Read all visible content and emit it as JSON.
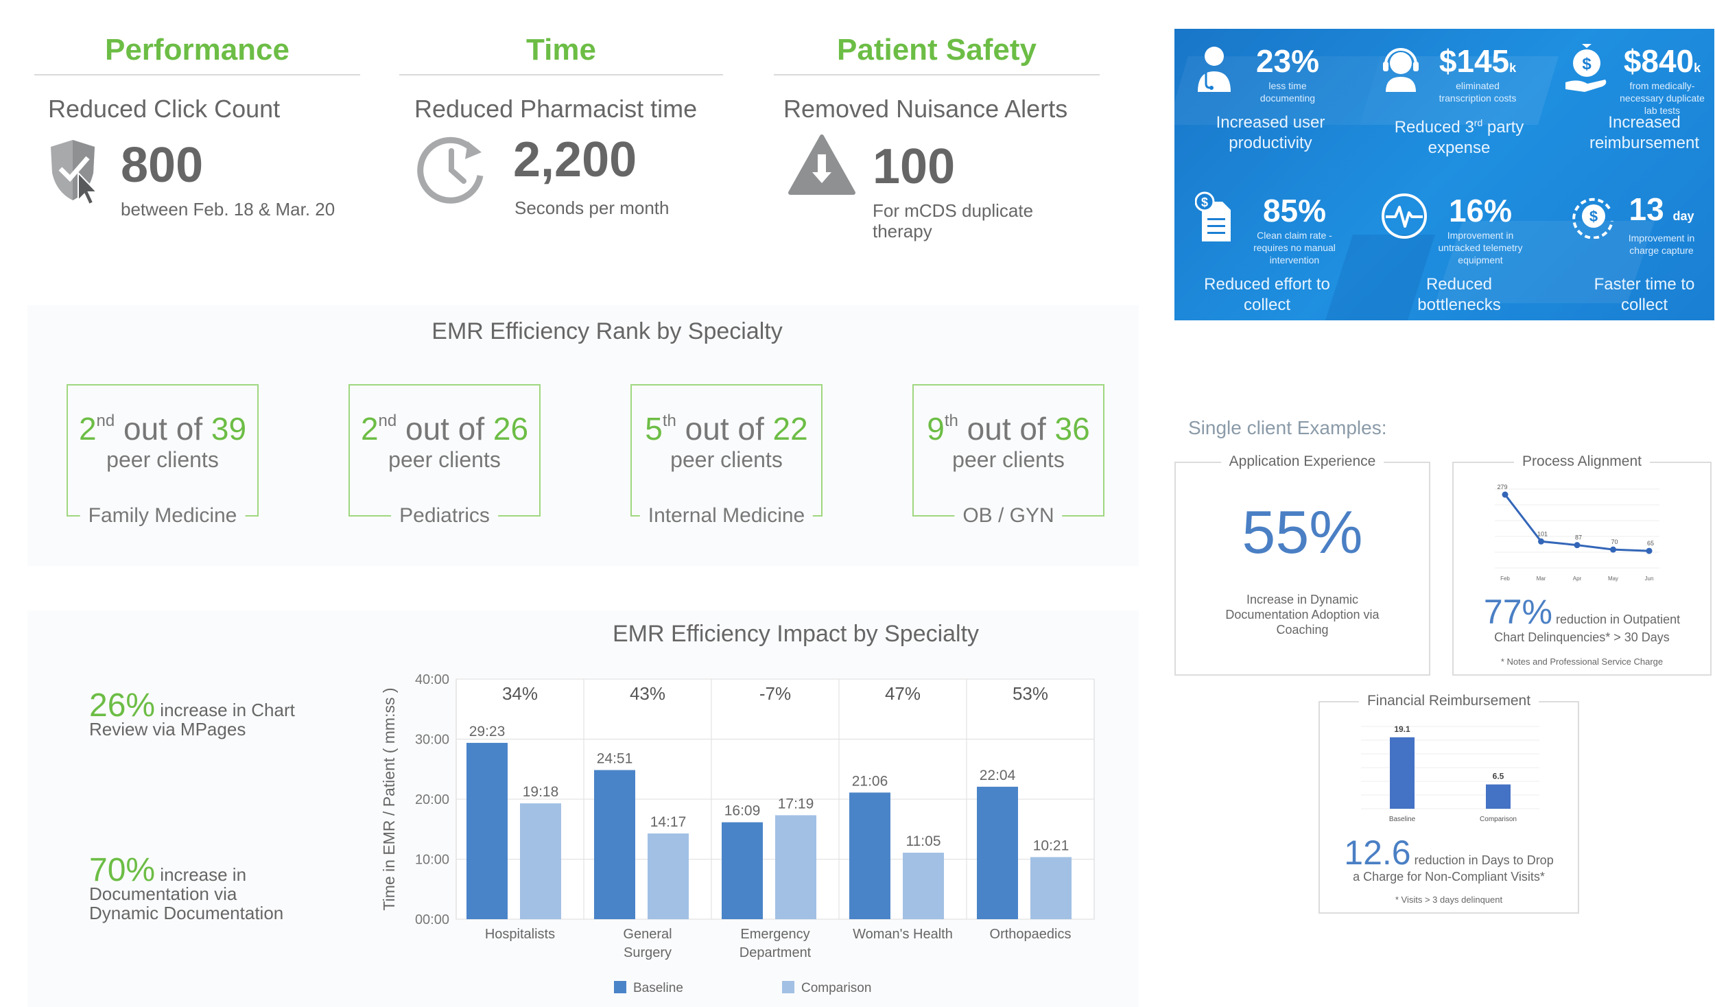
{
  "performance": {
    "header": "Performance",
    "subtitle": "Reduced Click Count",
    "value": "800",
    "note": "between Feb. 18 & Mar. 20",
    "icon": "shield-cursor-icon"
  },
  "time": {
    "header": "Time",
    "subtitle": "Reduced Pharmacist time",
    "value": "2,200",
    "note": "Seconds per month",
    "icon": "clock-refresh-icon"
  },
  "patient_safety": {
    "header": "Patient Safety",
    "subtitle": "Removed Nuisance Alerts",
    "value": "100",
    "note_line1": "For mCDS duplicate",
    "note_line2": "therapy",
    "icon": "warning-icon"
  },
  "kpis": [
    {
      "value": "23%",
      "unit": "",
      "small1": "less time",
      "small2": "documenting",
      "small3": "",
      "label1": "Increased user",
      "label2": "productivity",
      "icon": "doctor-icon"
    },
    {
      "value": "$145",
      "unit": "k",
      "small1": "eliminated",
      "small2": "transcription costs",
      "small3": "",
      "label1": "Reduced 3",
      "label_sup": "rd",
      "label1b": " party",
      "label2": "expense",
      "icon": "headset-icon"
    },
    {
      "value": "$840",
      "unit": "k",
      "small1": "from medically-",
      "small2": "necessary duplicate",
      "small3": "lab tests",
      "label1": "Increased",
      "label2": "reimbursement",
      "icon": "money-hand-icon"
    },
    {
      "value": "85%",
      "unit": "",
      "small1": "Clean claim rate -",
      "small2": "requires no manual",
      "small3": "intervention",
      "label1": "Reduced effort to",
      "label2": "collect",
      "icon": "invoice-icon"
    },
    {
      "value": "16%",
      "unit": "",
      "small1": "Improvement in",
      "small2": "untracked telemetry",
      "small3": "equipment",
      "label1": "Reduced",
      "label2": "bottlenecks",
      "icon": "heartbeat-icon"
    },
    {
      "value": "13",
      "unit": "day",
      "small1": "Improvement in",
      "small2": "charge capture",
      "small3": "",
      "label1": "Faster time to",
      "label2": "collect",
      "icon": "dollar-cycle-icon"
    }
  ],
  "rank": {
    "title": "EMR Efficiency Rank by Specialty",
    "peer_text": "peer clients",
    "out_of": "out of",
    "items": [
      {
        "rank": "2",
        "suffix": "nd",
        "total": "39",
        "specialty": "Family Medicine"
      },
      {
        "rank": "2",
        "suffix": "nd",
        "total": "26",
        "specialty": "Pediatrics"
      },
      {
        "rank": "5",
        "suffix": "th",
        "total": "22",
        "specialty": "Internal Medicine"
      },
      {
        "rank": "9",
        "suffix": "th",
        "total": "36",
        "specialty": "OB / GYN"
      }
    ]
  },
  "impact": {
    "title": "EMR Efficiency Impact by Specialty",
    "stat1_value": "26%",
    "stat1_line1": " increase in Chart",
    "stat1_line2": "Review via MPages",
    "stat2_value": "70%",
    "stat2_line1": " increase in",
    "stat2_line2": "Documentation via",
    "stat2_line3": "Dynamic Documentation"
  },
  "chart_data": [
    {
      "type": "bar",
      "title": "EMR Efficiency Impact by Specialty",
      "ylabel": "Time in EMR / Patient ( mm:ss )",
      "xlabel": "",
      "ylim": [
        0,
        40
      ],
      "yticks": [
        "00:00",
        "10:00",
        "20:00",
        "30:00",
        "40:00"
      ],
      "categories": [
        [
          "Hospitalists"
        ],
        [
          "General",
          "Surgery"
        ],
        [
          "Emergency",
          "Department"
        ],
        [
          "Woman's Health"
        ],
        [
          "Orthopaedics"
        ]
      ],
      "pct_change": [
        "34%",
        "43%",
        "-7%",
        "47%",
        "53%"
      ],
      "series": [
        {
          "name": "Baseline",
          "color": "#4a84c8",
          "values": [
            29.38,
            24.85,
            16.15,
            21.1,
            22.07
          ],
          "labels": [
            "29:23",
            "24:51",
            "16:09",
            "21:06",
            "22:04"
          ]
        },
        {
          "name": "Comparison",
          "color": "#a2c0e4",
          "values": [
            19.3,
            14.28,
            17.32,
            11.08,
            10.35
          ],
          "labels": [
            "19:18",
            "14:17",
            "17:19",
            "11:05",
            "10:21"
          ]
        }
      ],
      "legend": "bottom"
    },
    {
      "type": "line",
      "title": "Process Alignment",
      "x": [
        "Feb",
        "Mar",
        "Apr",
        "May",
        "Jun"
      ],
      "values": [
        279,
        101,
        87,
        70,
        65
      ],
      "ylim": [
        0,
        300
      ]
    },
    {
      "type": "bar",
      "title": "Financial Reimbursement",
      "categories": [
        "Baseline",
        "Comparison"
      ],
      "values": [
        19.1,
        6.5
      ],
      "ylim": [
        0,
        22
      ]
    }
  ],
  "single_client": {
    "heading": "Single client Examples:",
    "app_exp": {
      "title": "Application Experience",
      "value": "55%",
      "line1": "Increase in Dynamic",
      "line2": "Documentation Adoption via",
      "line3": "Coaching"
    },
    "process": {
      "title": "Process Alignment",
      "value": "77%",
      "line1": " reduction in Outpatient",
      "line2": "Chart Delinquencies* > 30 Days",
      "footnote": "* Notes and Professional Service Charge"
    },
    "financial": {
      "title": "Financial Reimbursement",
      "value": "12.6",
      "line1": " reduction in Days to Drop",
      "line2": "a Charge for Non-Compliant Visits*",
      "footnote": "* Visits > 3 days delinquent"
    }
  }
}
